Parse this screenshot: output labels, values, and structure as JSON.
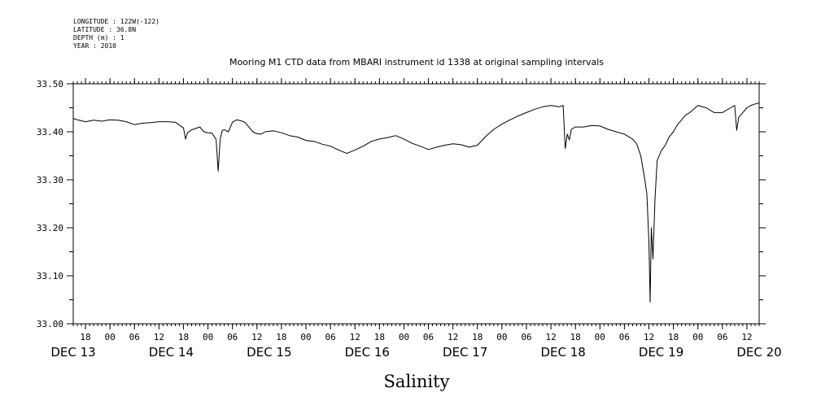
{
  "meta": {
    "longitude": "LONGITUDE : 122W(-122)",
    "latitude": "LATITUDE : 36.8N",
    "depth": "DEPTH (m) : 1",
    "year": "YEAR : 2010"
  },
  "chart_data": {
    "type": "line",
    "title": "Mooring M1 CTD data from MBARI instrument id 1338 at original sampling intervals",
    "xlabel": "Salinity",
    "ylabel": "",
    "grid": false,
    "xlim": [
      -9,
      159
    ],
    "ylim": [
      33.0,
      33.5
    ],
    "y_ticks": [
      "33.00",
      "33.10",
      "33.20",
      "33.30",
      "33.40",
      "33.50"
    ],
    "x_ticks": [
      {
        "t": -6,
        "label": "18"
      },
      {
        "t": 0,
        "label": "00"
      },
      {
        "t": 6,
        "label": "06"
      },
      {
        "t": 12,
        "label": "12"
      },
      {
        "t": 18,
        "label": "18"
      },
      {
        "t": 24,
        "label": "00"
      },
      {
        "t": 30,
        "label": "06"
      },
      {
        "t": 36,
        "label": "12"
      },
      {
        "t": 42,
        "label": "18"
      },
      {
        "t": 48,
        "label": "00"
      },
      {
        "t": 54,
        "label": "06"
      },
      {
        "t": 60,
        "label": "12"
      },
      {
        "t": 66,
        "label": "18"
      },
      {
        "t": 72,
        "label": "00"
      },
      {
        "t": 78,
        "label": "06"
      },
      {
        "t": 84,
        "label": "12"
      },
      {
        "t": 90,
        "label": "18"
      },
      {
        "t": 96,
        "label": "00"
      },
      {
        "t": 102,
        "label": "06"
      },
      {
        "t": 108,
        "label": "12"
      },
      {
        "t": 114,
        "label": "18"
      },
      {
        "t": 120,
        "label": "00"
      },
      {
        "t": 126,
        "label": "06"
      },
      {
        "t": 132,
        "label": "12"
      },
      {
        "t": 138,
        "label": "18"
      },
      {
        "t": 144,
        "label": "00"
      },
      {
        "t": 150,
        "label": "06"
      },
      {
        "t": 156,
        "label": "12"
      }
    ],
    "day_labels": [
      {
        "t": -9,
        "label": "DEC 13"
      },
      {
        "t": 15,
        "label": "DEC 14"
      },
      {
        "t": 39,
        "label": "DEC 15"
      },
      {
        "t": 63,
        "label": "DEC 16"
      },
      {
        "t": 87,
        "label": "DEC 17"
      },
      {
        "t": 111,
        "label": "DEC 18"
      },
      {
        "t": 135,
        "label": "DEC 19"
      },
      {
        "t": 159,
        "label": "DEC 20"
      }
    ],
    "series": [
      {
        "x": [
          -9,
          -8,
          -6,
          -4,
          -2,
          0,
          2,
          4,
          6,
          8,
          10,
          12,
          14,
          16,
          18,
          18.5,
          19,
          20,
          21,
          22,
          23,
          24,
          25,
          26,
          26.5,
          27,
          27.5,
          28,
          29,
          30,
          31,
          32,
          33,
          34,
          35,
          36,
          37,
          38,
          40,
          42,
          44,
          46,
          48,
          50,
          52,
          54,
          56,
          58,
          60,
          62,
          64,
          66,
          68,
          70,
          72,
          74,
          76,
          78,
          80,
          82,
          84,
          86,
          88,
          90,
          92,
          94,
          96,
          98,
          100,
          102,
          104,
          106,
          108,
          110,
          111,
          111.5,
          112,
          112.5,
          113,
          114,
          116,
          118,
          120,
          122,
          124,
          126,
          128,
          129,
          130,
          131,
          131.5,
          132,
          132.3,
          132.6,
          133,
          133.5,
          134,
          135,
          136,
          137,
          138,
          139,
          140,
          141,
          142,
          144,
          146,
          148,
          150,
          152,
          153,
          153.5,
          154,
          155,
          156,
          157,
          158,
          159
        ],
        "y": [
          33.428,
          33.425,
          33.421,
          33.424,
          33.422,
          33.425,
          33.424,
          33.421,
          33.415,
          33.418,
          33.419,
          33.421,
          33.421,
          33.42,
          33.408,
          33.385,
          33.398,
          33.404,
          33.407,
          33.41,
          33.4,
          33.398,
          33.397,
          33.384,
          33.318,
          33.385,
          33.403,
          33.404,
          33.4,
          33.42,
          33.425,
          33.423,
          33.42,
          33.41,
          33.4,
          33.396,
          33.395,
          33.4,
          33.402,
          33.398,
          33.392,
          33.389,
          33.382,
          33.38,
          33.374,
          33.37,
          33.362,
          33.355,
          33.362,
          33.37,
          33.38,
          33.385,
          33.388,
          33.392,
          33.385,
          33.376,
          33.37,
          33.363,
          33.368,
          33.372,
          33.375,
          33.373,
          33.368,
          33.372,
          33.39,
          33.405,
          33.416,
          33.425,
          33.433,
          33.44,
          33.447,
          33.452,
          33.455,
          33.452,
          33.455,
          33.365,
          33.395,
          33.383,
          33.405,
          33.41,
          33.41,
          33.413,
          33.412,
          33.405,
          33.4,
          33.395,
          33.385,
          33.375,
          33.35,
          33.3,
          33.27,
          33.17,
          33.045,
          33.2,
          33.135,
          33.26,
          33.34,
          33.36,
          33.372,
          33.39,
          33.4,
          33.415,
          33.425,
          33.435,
          33.44,
          33.455,
          33.45,
          33.44,
          33.44,
          33.45,
          33.455,
          33.403,
          33.43,
          33.44,
          33.45,
          33.455,
          33.458,
          33.46
        ]
      }
    ]
  }
}
